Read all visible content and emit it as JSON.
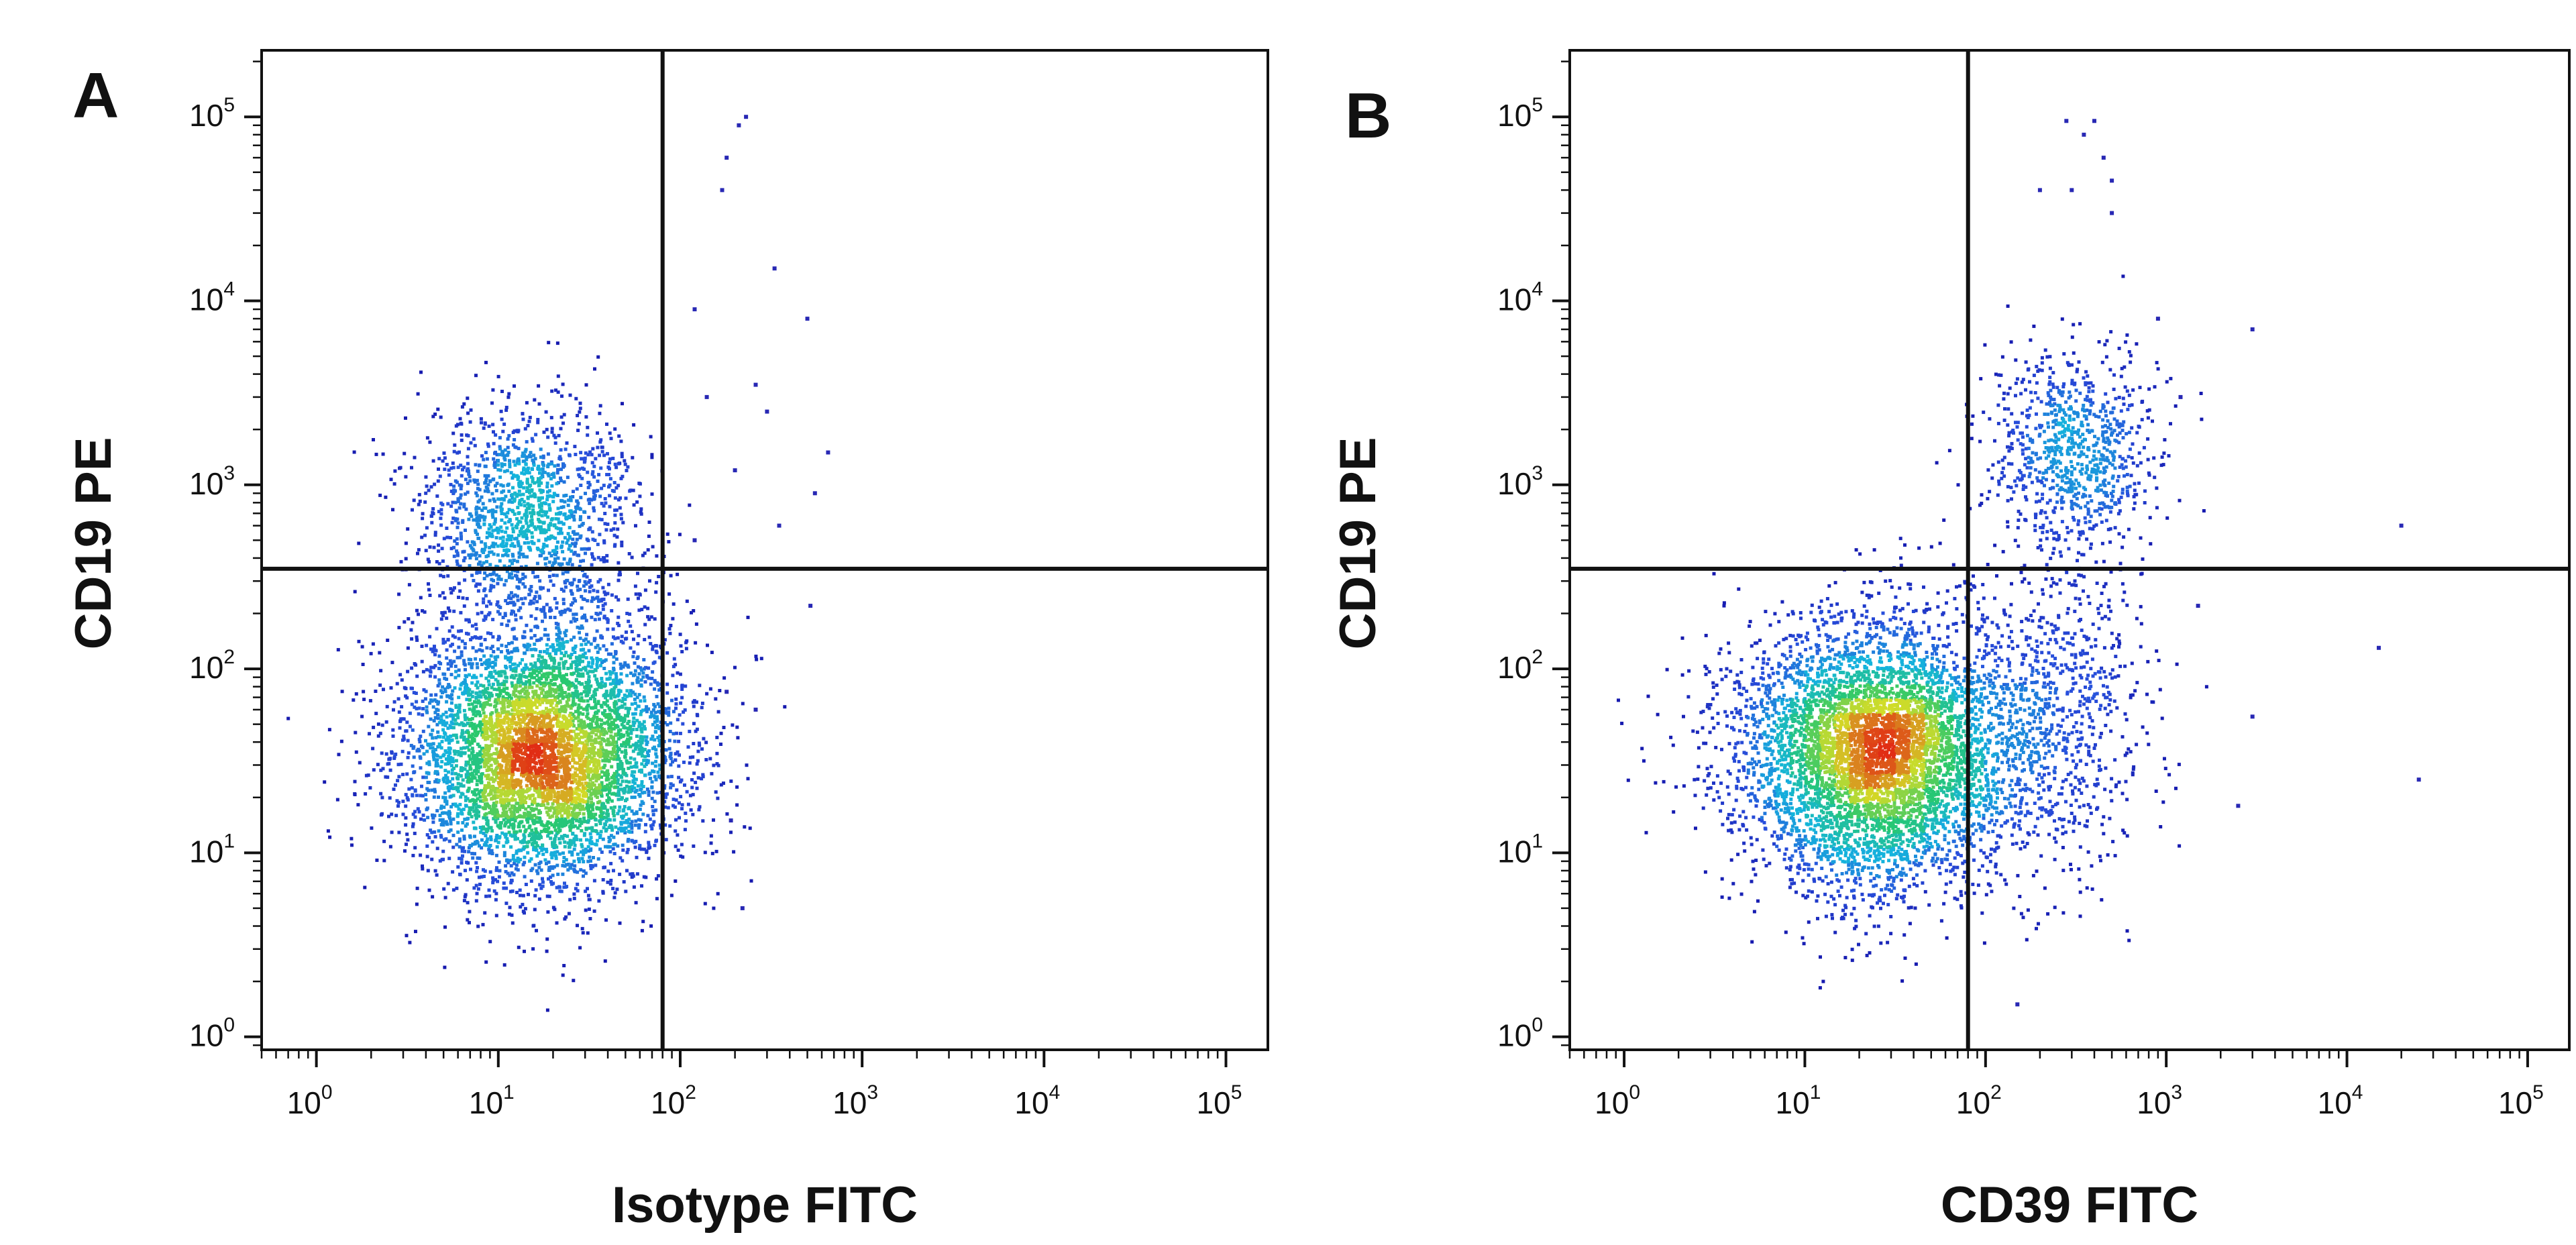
{
  "chart_data": [
    {
      "type": "scatter",
      "panel_label": "A",
      "xlabel": "Isotype FITC",
      "ylabel": "CD19 PE",
      "xscale": "log",
      "yscale": "log",
      "xlim": [
        0.5,
        170000
      ],
      "ylim": [
        0.85,
        230000
      ],
      "x_ticks": [
        "10",
        "10",
        "10",
        "10",
        "10",
        "10"
      ],
      "x_tick_exponents": [
        "0",
        "1",
        "2",
        "3",
        "4",
        "5"
      ],
      "y_ticks": [
        "10",
        "10",
        "10",
        "10",
        "10",
        "10"
      ],
      "y_tick_exponents": [
        "0",
        "1",
        "2",
        "3",
        "4",
        "5"
      ],
      "quadrant_gate": {
        "x": 80,
        "y": 350
      },
      "coloring": "density",
      "populations": [
        {
          "name": "",
          "center": [
            18,
            35
          ],
          "spread_decades": [
            0.38,
            0.36
          ],
          "share": 0.8
        },
        {
          "name": "",
          "center": [
            14,
            700
          ],
          "spread_decades": [
            0.3,
            0.28
          ],
          "share": 0.2
        }
      ],
      "sparse_events": [
        [
          230,
          100000
        ],
        [
          210,
          90000
        ],
        [
          180,
          60000
        ],
        [
          170,
          40000
        ],
        [
          330,
          15000
        ],
        [
          500,
          8000
        ],
        [
          120,
          9000
        ],
        [
          140,
          3000
        ],
        [
          260,
          3500
        ],
        [
          300,
          2500
        ],
        [
          650,
          1500
        ],
        [
          550,
          900
        ],
        [
          200,
          1200
        ],
        [
          350,
          600
        ],
        [
          120,
          500
        ],
        [
          520,
          220
        ],
        [
          180,
          75
        ],
        [
          260,
          60
        ],
        [
          220,
          5
        ],
        [
          190,
          15
        ]
      ],
      "grid": false
    },
    {
      "type": "scatter",
      "panel_label": "B",
      "xlabel": "CD39 FITC",
      "ylabel": "CD19 PE",
      "xscale": "log",
      "yscale": "log",
      "xlim": [
        0.5,
        170000
      ],
      "ylim": [
        0.85,
        230000
      ],
      "x_ticks": [
        "10",
        "10",
        "10",
        "10",
        "10",
        "10"
      ],
      "x_tick_exponents": [
        "0",
        "1",
        "2",
        "3",
        "4",
        "5"
      ],
      "y_ticks": [
        "10",
        "10",
        "10",
        "10",
        "10",
        "10"
      ],
      "y_tick_exponents": [
        "0",
        "1",
        "2",
        "3",
        "4",
        "5"
      ],
      "quadrant_gate": {
        "x": 80,
        "y": 350
      },
      "coloring": "density",
      "populations": [
        {
          "name": "",
          "center": [
            25,
            35
          ],
          "spread_decades": [
            0.38,
            0.36
          ],
          "share": 0.78
        },
        {
          "name": "",
          "center": [
            300,
            1500
          ],
          "spread_decades": [
            0.22,
            0.28
          ],
          "share": 0.12
        },
        {
          "name": "",
          "center": [
            250,
            60
          ],
          "spread_decades": [
            0.25,
            0.45
          ],
          "share": 0.1
        }
      ],
      "sparse_events": [
        [
          280,
          95000
        ],
        [
          400,
          95000
        ],
        [
          350,
          80000
        ],
        [
          450,
          60000
        ],
        [
          500,
          45000
        ],
        [
          300,
          40000
        ],
        [
          3000,
          7000
        ],
        [
          20000,
          600
        ],
        [
          15000,
          130
        ],
        [
          25000,
          25
        ],
        [
          3000,
          55
        ],
        [
          1500,
          220
        ],
        [
          150,
          1.5
        ],
        [
          2500,
          18
        ],
        [
          200,
          40000
        ],
        [
          500,
          30000
        ],
        [
          1200,
          3000
        ],
        [
          900,
          8000
        ]
      ],
      "grid": false
    }
  ]
}
